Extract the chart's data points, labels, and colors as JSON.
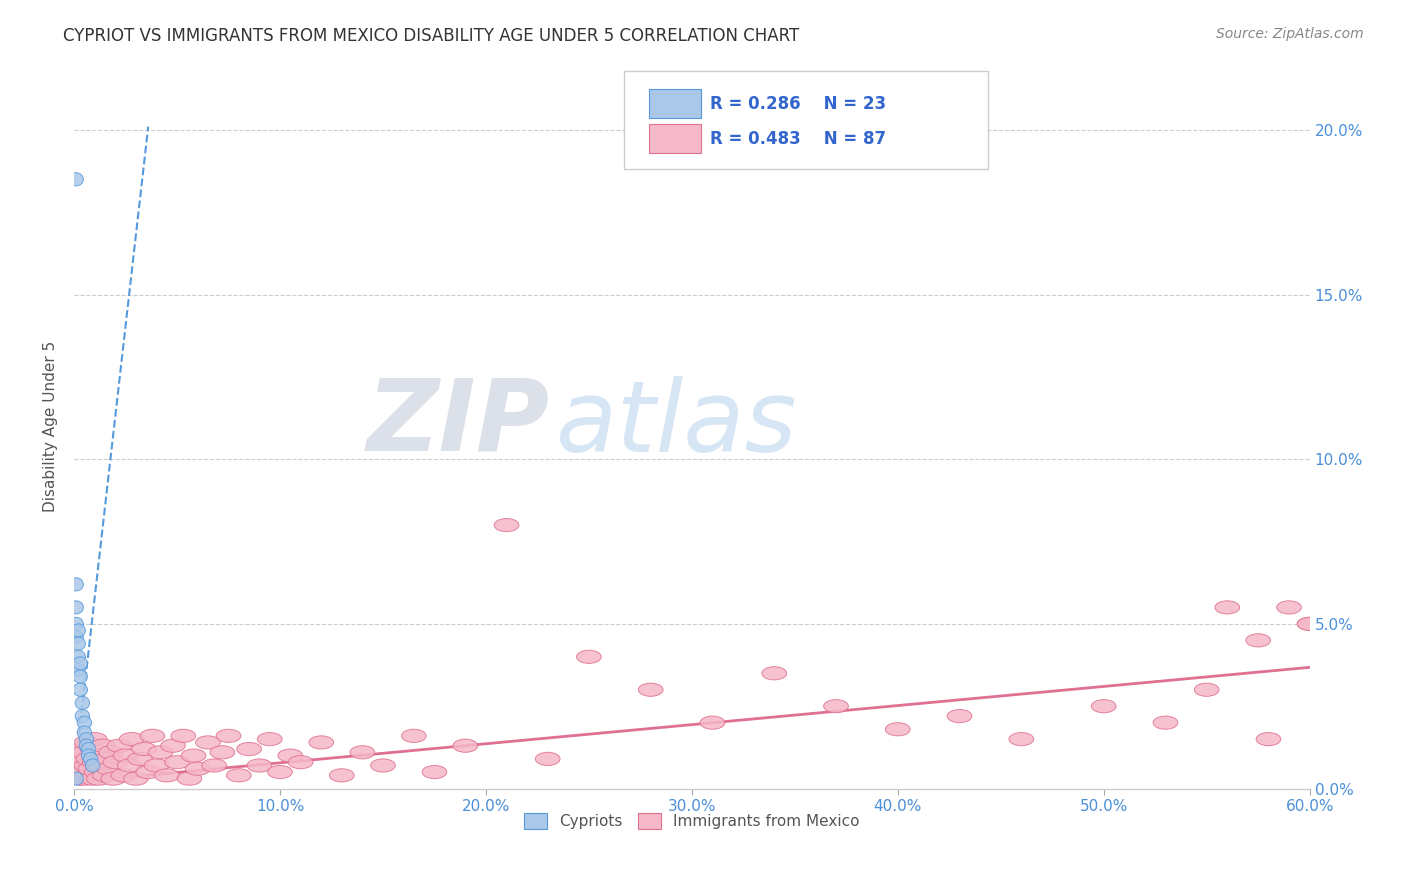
{
  "title": "CYPRIOT VS IMMIGRANTS FROM MEXICO DISABILITY AGE UNDER 5 CORRELATION CHART",
  "source": "Source: ZipAtlas.com",
  "ylabel": "Disability Age Under 5",
  "xlim": [
    0.0,
    0.6
  ],
  "ylim": [
    0.0,
    0.22
  ],
  "cypriot_color": "#aac8e8",
  "cypriot_edge_color": "#5599dd",
  "mexico_color": "#f5b8c8",
  "mexico_edge_color": "#e07090",
  "trend_cypriot_color": "#5599dd",
  "trend_mexico_color": "#e07090",
  "legend_R_cypriot": "R = 0.286",
  "legend_N_cypriot": "N = 23",
  "legend_R_mexico": "R = 0.483",
  "legend_N_mexico": "N = 87",
  "legend_label_cypriot": "Cypriots",
  "legend_label_mexico": "Immigrants from Mexico",
  "cypriot_x": [
    0.001,
    0.001,
    0.001,
    0.001,
    0.001,
    0.002,
    0.002,
    0.002,
    0.002,
    0.003,
    0.003,
    0.003,
    0.004,
    0.004,
    0.005,
    0.005,
    0.006,
    0.006,
    0.007,
    0.007,
    0.008,
    0.009,
    0.001
  ],
  "cypriot_y": [
    0.185,
    0.062,
    0.055,
    0.05,
    0.046,
    0.048,
    0.044,
    0.04,
    0.036,
    0.038,
    0.034,
    0.03,
    0.026,
    0.022,
    0.02,
    0.017,
    0.015,
    0.013,
    0.012,
    0.01,
    0.009,
    0.007,
    0.003
  ],
  "mexico_x": [
    0.001,
    0.001,
    0.002,
    0.002,
    0.003,
    0.003,
    0.003,
    0.004,
    0.004,
    0.005,
    0.005,
    0.006,
    0.006,
    0.007,
    0.007,
    0.008,
    0.009,
    0.009,
    0.01,
    0.01,
    0.011,
    0.012,
    0.012,
    0.013,
    0.014,
    0.015,
    0.016,
    0.017,
    0.018,
    0.019,
    0.02,
    0.022,
    0.024,
    0.025,
    0.027,
    0.028,
    0.03,
    0.032,
    0.034,
    0.036,
    0.038,
    0.04,
    0.042,
    0.045,
    0.048,
    0.05,
    0.053,
    0.056,
    0.058,
    0.06,
    0.065,
    0.068,
    0.072,
    0.075,
    0.08,
    0.085,
    0.09,
    0.095,
    0.1,
    0.105,
    0.11,
    0.12,
    0.13,
    0.14,
    0.15,
    0.165,
    0.175,
    0.19,
    0.21,
    0.23,
    0.25,
    0.28,
    0.31,
    0.34,
    0.37,
    0.4,
    0.43,
    0.46,
    0.5,
    0.53,
    0.55,
    0.56,
    0.575,
    0.58,
    0.59,
    0.6,
    0.6
  ],
  "mexico_y": [
    0.01,
    0.005,
    0.008,
    0.004,
    0.012,
    0.006,
    0.003,
    0.009,
    0.005,
    0.011,
    0.003,
    0.007,
    0.014,
    0.004,
    0.009,
    0.006,
    0.012,
    0.003,
    0.008,
    0.015,
    0.005,
    0.01,
    0.003,
    0.007,
    0.013,
    0.004,
    0.009,
    0.006,
    0.011,
    0.003,
    0.008,
    0.013,
    0.004,
    0.01,
    0.007,
    0.015,
    0.003,
    0.009,
    0.012,
    0.005,
    0.016,
    0.007,
    0.011,
    0.004,
    0.013,
    0.008,
    0.016,
    0.003,
    0.01,
    0.006,
    0.014,
    0.007,
    0.011,
    0.016,
    0.004,
    0.012,
    0.007,
    0.015,
    0.005,
    0.01,
    0.008,
    0.014,
    0.004,
    0.011,
    0.007,
    0.016,
    0.005,
    0.013,
    0.08,
    0.009,
    0.04,
    0.03,
    0.02,
    0.035,
    0.025,
    0.018,
    0.022,
    0.015,
    0.025,
    0.02,
    0.03,
    0.055,
    0.045,
    0.015,
    0.055,
    0.05,
    0.05
  ],
  "trend_mex_slope": 0.058,
  "trend_mex_intercept": 0.002,
  "trend_cyp_slope": 5.5,
  "trend_cyp_intercept": 0.003,
  "trend_cyp_xmax": 0.036
}
